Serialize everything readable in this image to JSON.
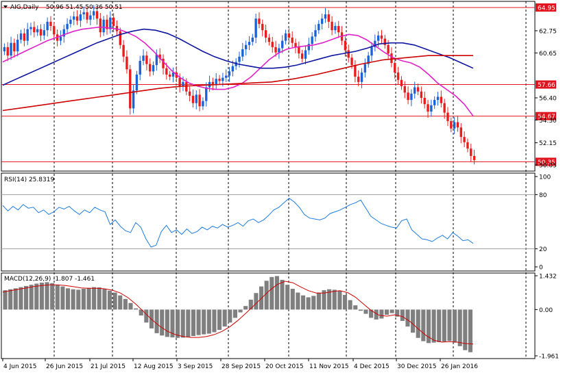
{
  "header": {
    "symbol_label": "AIG,Daily",
    "ohlc": "50.96 51.45 50.36 50.51"
  },
  "rsi": {
    "label": "RSI(14) 25.8319"
  },
  "macd": {
    "label": "MACD(12,26,9) -1.807 -1.461"
  },
  "colors": {
    "bull_candle": "#1a62d6",
    "bear_candle": "#e81c1c",
    "ma_fast": "#e020c8",
    "ma_mid": "#0d14a0",
    "ma_slow": "#cc0000",
    "price_tag": "#e0141e",
    "rsi_line": "#1c7be0",
    "macd_hist": "#7f7f7f",
    "macd_signal": "#d00000"
  },
  "chart_data": [
    {
      "type": "candlestick",
      "name_on_chart": "AIG,Daily",
      "y_axis_ticks": [
        "64.95",
        "62.75",
        "60.65",
        "57.66",
        "56.40",
        "54.67",
        "54.30",
        "52.15",
        "50.35",
        "50.05"
      ],
      "horizontal_lines": [
        {
          "value": 64.95,
          "label": "64.95"
        },
        {
          "value": 57.66,
          "label": "57.66"
        },
        {
          "value": 54.67,
          "label": "54.67"
        },
        {
          "value": 50.35,
          "label": "50.35"
        }
      ],
      "ylim": [
        49.6,
        65.4
      ],
      "close_series": [
        61.2,
        60.4,
        61.6,
        60.8,
        61.9,
        62.5,
        61.8,
        62.9,
        63.1,
        62.6,
        62.9,
        62.3,
        62.8,
        63.6,
        63.2,
        62.4,
        61.8,
        62.2,
        62.9,
        63.4,
        63.8,
        64.1,
        63.7,
        64.3,
        64.5,
        63.8,
        64.2,
        64.6,
        63.9,
        62.6,
        63.8,
        62.9,
        64.0,
        63.2,
        62.7,
        61.4,
        60.3,
        59.1,
        55.4,
        57.1,
        58.6,
        59.9,
        60.4,
        59.6,
        58.9,
        59.5,
        60.5,
        60.1,
        59.2,
        58.6,
        58.4,
        58.8,
        58.3,
        57.5,
        57.9,
        57.0,
        56.6,
        55.9,
        56.7,
        55.6,
        56.1,
        57.4,
        57.9,
        57.7,
        58.2,
        58.0,
        58.3,
        58.5,
        58.9,
        59.4,
        59.8,
        60.3,
        61.0,
        61.4,
        61.7,
        62.1,
        63.9,
        63.4,
        62.8,
        62.1,
        61.7,
        61.2,
        60.7,
        61.1,
        61.8,
        62.5,
        62.1,
        61.6,
        61.2,
        60.6,
        60.1,
        60.9,
        61.5,
        62.2,
        62.8,
        63.4,
        63.9,
        64.3,
        63.6,
        62.8,
        63.2,
        62.6,
        61.8,
        60.9,
        60.2,
        59.5,
        58.4,
        57.9,
        58.8,
        59.6,
        60.4,
        61.2,
        61.8,
        62.3,
        62.0,
        61.4,
        60.6,
        59.7,
        58.8,
        58.1,
        57.5,
        56.9,
        56.2,
        56.8,
        57.4,
        57.0,
        56.4,
        55.8,
        55.1,
        55.7,
        56.2,
        56.5,
        55.9,
        55.0,
        54.2,
        53.5,
        54.1,
        53.6,
        52.7,
        52.2,
        51.6,
        50.9,
        50.51
      ],
      "moving_averages": [
        {
          "color": "#e020c8",
          "values": [
            59.8,
            60.2,
            60.6,
            61.0,
            61.4,
            61.8,
            62.1,
            62.4,
            62.7,
            62.9,
            63.0,
            63.1,
            63.0,
            62.9,
            62.6,
            62.2,
            61.6,
            60.8,
            59.9,
            59.0,
            58.3,
            57.8,
            57.5,
            57.3,
            57.2,
            57.2,
            57.4,
            57.8,
            58.4,
            59.2,
            60.0,
            60.6,
            61.0,
            61.2,
            61.3,
            61.4,
            61.6,
            61.9,
            62.2,
            62.4,
            62.3,
            61.9,
            61.3,
            60.7,
            60.2,
            59.9,
            59.7,
            59.3,
            58.6,
            57.8,
            57.2,
            56.6,
            55.8,
            54.67
          ]
        },
        {
          "color": "#0d14a0",
          "values": [
            57.6,
            58.1,
            58.6,
            59.1,
            59.6,
            60.1,
            60.6,
            61.1,
            61.6,
            62.0,
            62.4,
            62.7,
            62.9,
            62.8,
            62.5,
            62.0,
            61.4,
            60.8,
            60.3,
            59.9,
            59.6,
            59.4,
            59.2,
            59.2,
            59.3,
            59.5,
            59.8,
            60.1,
            60.4,
            60.6,
            60.8,
            61.1,
            61.5,
            61.6,
            61.6,
            61.4,
            61.0,
            60.6,
            60.2,
            59.7,
            59.2
          ]
        },
        {
          "color": "#cc0000",
          "values": [
            55.2,
            55.5,
            55.8,
            56.1,
            56.4,
            56.7,
            57.0,
            57.3,
            57.5,
            57.6,
            57.7,
            57.8,
            57.9,
            58.2,
            58.6,
            59.1,
            59.6,
            60.0,
            60.2,
            60.4,
            60.4,
            60.4
          ]
        }
      ]
    },
    {
      "type": "line",
      "name_on_chart": "RSI(14) 25.8319",
      "ylim": [
        0,
        100
      ],
      "y_axis_ticks": [
        "100",
        "80",
        "20",
        "0"
      ],
      "levels": [
        80,
        20
      ],
      "values": [
        68,
        62,
        67,
        63,
        69,
        65,
        66,
        60,
        63,
        58,
        61,
        66,
        64,
        67,
        62,
        58,
        63,
        60,
        66,
        63,
        61,
        47,
        52,
        45,
        40,
        38,
        49,
        44,
        31,
        22,
        24,
        39,
        46,
        38,
        41,
        36,
        42,
        37,
        39,
        44,
        41,
        45,
        43,
        47,
        44,
        46,
        49,
        45,
        51,
        53,
        49,
        52,
        57,
        63,
        66,
        71,
        76,
        72,
        66,
        58,
        54,
        53,
        52,
        54,
        59,
        61,
        63,
        66,
        69,
        71,
        74,
        65,
        56,
        52,
        48,
        46,
        44,
        43,
        51,
        53,
        41,
        36,
        31,
        30,
        28,
        32,
        35,
        31,
        38,
        34,
        29,
        30,
        26
      ]
    },
    {
      "type": "bar",
      "name_on_chart": "MACD(12,26,9) -1.807 -1.461",
      "ylim": [
        -1.961,
        1.432
      ],
      "y_axis_ticks": [
        "1.432",
        "0.00",
        "-1.961"
      ],
      "values": [
        0.82,
        0.86,
        0.9,
        0.95,
        1.0,
        1.05,
        1.1,
        1.14,
        1.16,
        1.12,
        1.05,
        0.98,
        0.9,
        0.86,
        0.84,
        0.88,
        0.92,
        0.95,
        0.94,
        0.88,
        0.8,
        0.72,
        0.6,
        0.45,
        0.28,
        0.05,
        -0.25,
        -0.55,
        -0.8,
        -1.0,
        -1.1,
        -1.16,
        -1.18,
        -1.2,
        -1.19,
        -1.16,
        -1.12,
        -1.08,
        -1.05,
        -1.02,
        -0.96,
        -0.86,
        -0.72,
        -0.55,
        -0.35,
        -0.12,
        0.15,
        0.42,
        0.7,
        0.98,
        1.22,
        1.38,
        1.42,
        1.26,
        1.05,
        0.88,
        0.72,
        0.6,
        0.52,
        0.58,
        0.72,
        0.82,
        0.86,
        0.84,
        0.8,
        0.62,
        0.4,
        0.18,
        -0.05,
        -0.18,
        -0.35,
        -0.42,
        -0.38,
        -0.22,
        -0.15,
        -0.3,
        -0.48,
        -0.72,
        -0.98,
        -1.2,
        -1.34,
        -1.42,
        -1.4,
        -1.38,
        -1.36,
        -1.33,
        -1.4,
        -1.55,
        -1.72,
        -1.807
      ],
      "signal": [
        0.74,
        0.8,
        0.86,
        0.92,
        0.98,
        1.02,
        1.05,
        1.05,
        1.02,
        0.97,
        0.92,
        0.9,
        0.9,
        0.88,
        0.82,
        0.7,
        0.5,
        0.22,
        -0.1,
        -0.42,
        -0.7,
        -0.92,
        -1.06,
        -1.14,
        -1.18,
        -1.18,
        -1.14,
        -1.06,
        -0.92,
        -0.72,
        -0.46,
        -0.16,
        0.16,
        0.48,
        0.8,
        1.06,
        1.2,
        1.14,
        0.96,
        0.8,
        0.7,
        0.7,
        0.76,
        0.8,
        0.72,
        0.52,
        0.24,
        -0.04,
        -0.24,
        -0.28,
        -0.22,
        -0.3,
        -0.52,
        -0.82,
        -1.1,
        -1.3,
        -1.38,
        -1.36,
        -1.38,
        -1.44,
        -1.461
      ]
    }
  ],
  "x_axis": {
    "labels": [
      "4 Jun 2015",
      "26 Jun 2015",
      "21 Jul 2015",
      "12 Aug 2015",
      "3 Sep 2015",
      "28 Sep 2015",
      "20 Oct 2015",
      "11 Nov 2015",
      "4 Dec 2015",
      "30 Dec 2015",
      "26 Jan 2016"
    ]
  }
}
